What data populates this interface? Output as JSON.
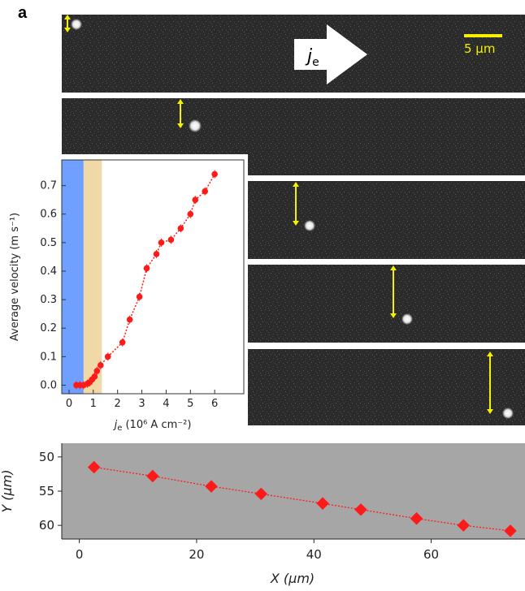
{
  "figure": {
    "panel_label": "a",
    "strips": {
      "current_label": "j",
      "current_subscript": "e",
      "scale_bar_label": "5 µm",
      "colors": {
        "background": "#2b2b2b",
        "arrow": "#ffffff",
        "marker": "#f5f000",
        "scale_bar": "#f5f000"
      }
    }
  },
  "chart_data": [
    {
      "type": "scatter",
      "title": "",
      "xlabel_prefix": "j",
      "xlabel_sub": "e",
      "xlabel_units": " (10⁶ A cm⁻²)",
      "ylabel": "Average velocity (m s⁻¹)",
      "xlim": [
        -0.3,
        7.2
      ],
      "ylim": [
        -0.03,
        0.79
      ],
      "x_ticks": [
        "0",
        "1",
        "2",
        "3",
        "4",
        "5",
        "6"
      ],
      "y_ticks": [
        "0.0",
        "0.1",
        "0.2",
        "0.3",
        "0.4",
        "0.5",
        "0.6",
        "0.7"
      ],
      "bands": [
        {
          "from": -0.3,
          "to": 0.6,
          "color": "#6fa0ff"
        },
        {
          "from": 0.6,
          "to": 1.35,
          "color": "#f0d9a6"
        }
      ],
      "series": [
        {
          "color": "#ff1a1a",
          "points": [
            [
              0.3,
              0.0
            ],
            [
              0.45,
              0.0
            ],
            [
              0.6,
              0.0
            ],
            [
              0.75,
              0.005
            ],
            [
              0.85,
              0.01
            ],
            [
              0.95,
              0.02
            ],
            [
              1.05,
              0.03
            ],
            [
              1.15,
              0.05
            ],
            [
              1.3,
              0.07
            ],
            [
              1.6,
              0.1
            ],
            [
              2.2,
              0.15
            ],
            [
              2.5,
              0.23
            ],
            [
              2.9,
              0.31
            ],
            [
              3.2,
              0.41
            ],
            [
              3.6,
              0.46
            ],
            [
              3.8,
              0.5
            ],
            [
              4.2,
              0.51
            ],
            [
              4.6,
              0.55
            ],
            [
              5.0,
              0.6
            ],
            [
              5.2,
              0.65
            ],
            [
              5.6,
              0.68
            ],
            [
              6.0,
              0.74
            ]
          ]
        }
      ]
    },
    {
      "type": "scatter",
      "title": "",
      "xlabel": "X (µm)",
      "ylabel": "Y (µm)",
      "xlim": [
        -3,
        76
      ],
      "ylim": [
        48,
        62
      ],
      "y_inverted": true,
      "x_ticks": [
        "0",
        "20",
        "40",
        "60"
      ],
      "y_ticks": [
        "50",
        "55",
        "60"
      ],
      "background": "#a6a6a6",
      "series": [
        {
          "color": "#ff1a1a",
          "points": [
            [
              2.5,
              51.5
            ],
            [
              12.5,
              52.8
            ],
            [
              22.5,
              54.3
            ],
            [
              31.0,
              55.4
            ],
            [
              41.5,
              56.8
            ],
            [
              48.0,
              57.7
            ],
            [
              57.5,
              59.0
            ],
            [
              65.5,
              60.0
            ],
            [
              73.5,
              60.8
            ]
          ]
        }
      ]
    }
  ]
}
